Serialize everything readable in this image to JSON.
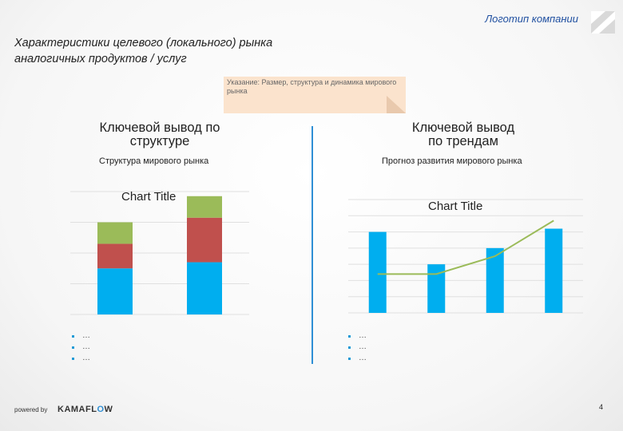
{
  "header": {
    "logo_text": "Логотип компании",
    "title_line1": "Характеристики целевого (локального) рынка",
    "title_line2": "аналогичных продуктов / услуг"
  },
  "note": {
    "text": "Указание: Размер, структура и динамика мирового рынка"
  },
  "left": {
    "heading_line1": "Ключевой вывод по",
    "heading_line2": "структуре",
    "subtitle": "Структура мирового рынка",
    "bullets": [
      "…",
      "…",
      "…"
    ]
  },
  "right": {
    "heading_line1": "Ключевой вывод",
    "heading_line2": "по трендам",
    "subtitle": "Прогноз развития мирового рынка",
    "bullets": [
      "…",
      "…",
      "…"
    ]
  },
  "footer": {
    "powered_by": "powered by",
    "brand_pre": "KAMAFL",
    "brand_o": "O",
    "brand_post": "W",
    "page_number": "4"
  },
  "colors": {
    "blue": "#00AEEF",
    "red": "#C0504D",
    "green": "#9BBB59",
    "line": "#9BBB59",
    "divider": "#2F8FD5"
  },
  "chart_data": [
    {
      "type": "bar",
      "stacked": true,
      "title": "Chart Title",
      "categories": [
        "",
        ""
      ],
      "series": [
        {
          "values": [
            1.5,
            1.7
          ],
          "color": "#00AEEF"
        },
        {
          "values": [
            0.8,
            1.45
          ],
          "color": "#C0504D"
        },
        {
          "values": [
            0.7,
            0.7
          ],
          "color": "#9BBB59"
        }
      ],
      "ylim": [
        0,
        4
      ],
      "grid": true
    },
    {
      "type": "bar",
      "combo_line": true,
      "title": "Chart Title",
      "categories": [
        "",
        "",
        "",
        ""
      ],
      "series": [
        {
          "type": "bar",
          "values": [
            5,
            3,
            4,
            5.2
          ],
          "color": "#00AEEF"
        },
        {
          "type": "line",
          "values": [
            2.4,
            2.4,
            3.5,
            5.7
          ],
          "color": "#9BBB59"
        }
      ],
      "ylim": [
        0,
        7
      ],
      "grid": true
    }
  ]
}
